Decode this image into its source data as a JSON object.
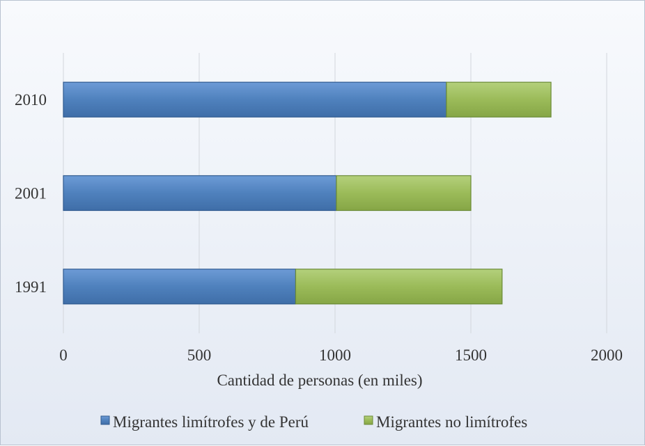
{
  "chart_data": {
    "type": "bar",
    "orientation": "horizontal",
    "stacked": true,
    "categories": [
      "1991",
      "2001",
      "2010"
    ],
    "series": [
      {
        "name": "Migrantes limítrofes y de Perú",
        "values": [
          855,
          1005,
          1410
        ],
        "color": "#4f81bd"
      },
      {
        "name": "Migrantes no limítrofes",
        "values": [
          760,
          495,
          385
        ],
        "color": "#9bbb59"
      }
    ],
    "xlabel": "Cantidad de personas (en miles)",
    "ylabel": "",
    "xlim": [
      0,
      2000
    ],
    "xticks": [
      "0",
      "500",
      "1000",
      "1500",
      "2000"
    ],
    "grid": "vertical",
    "legend": "bottom"
  }
}
